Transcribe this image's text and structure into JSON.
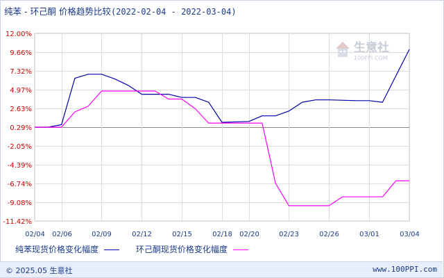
{
  "title": {
    "main": "纯苯 - 环己酮 价格趋势比较",
    "range": "(2022-02-04 - 2022-03-04)"
  },
  "watermark": {
    "name": "生意社",
    "url": "100PPI.COM"
  },
  "legend": [
    {
      "label": "纯苯现货价格变化幅度",
      "color": "#0000aa"
    },
    {
      "label": "环己酮现货价格变化幅度",
      "color": "#ff00ff"
    }
  ],
  "footer": {
    "copyright": "© 2025.05 生意社",
    "site": "www.100PPI.com"
  },
  "chart_data": {
    "type": "line",
    "y_ticks": [
      "12.00%",
      "9.66%",
      "7.32%",
      "4.97%",
      "2.63%",
      "0.29%",
      "-2.05%",
      "-4.39%",
      "-6.74%",
      "-9.08%",
      "-11.42%"
    ],
    "ylim": [
      -11.42,
      12.0
    ],
    "x_ticks": [
      "02/04",
      "02/06",
      "02/09",
      "02/12",
      "02/15",
      "02/18",
      "02/20",
      "02/23",
      "02/26",
      "03/01",
      "03/04"
    ],
    "x_range": [
      "02/04",
      "03/04"
    ],
    "grid": true,
    "series": [
      {
        "name": "纯苯现货价格变化幅度",
        "color": "#0000aa",
        "points": [
          [
            "02/04",
            0.29
          ],
          [
            "02/05",
            0.29
          ],
          [
            "02/06",
            0.6
          ],
          [
            "02/07",
            6.4
          ],
          [
            "02/08",
            6.9
          ],
          [
            "02/09",
            6.9
          ],
          [
            "02/10",
            6.3
          ],
          [
            "02/11",
            5.5
          ],
          [
            "02/12",
            4.4
          ],
          [
            "02/14",
            4.4
          ],
          [
            "02/15",
            4.0
          ],
          [
            "02/16",
            4.0
          ],
          [
            "02/17",
            3.4
          ],
          [
            "02/18",
            0.9
          ],
          [
            "02/20",
            1.0
          ],
          [
            "02/21",
            1.7
          ],
          [
            "02/22",
            1.7
          ],
          [
            "02/23",
            2.3
          ],
          [
            "02/24",
            3.4
          ],
          [
            "02/25",
            3.7
          ],
          [
            "02/26",
            3.7
          ],
          [
            "02/28",
            3.6
          ],
          [
            "03/01",
            3.6
          ],
          [
            "03/02",
            3.4
          ],
          [
            "03/04",
            10.0
          ]
        ]
      },
      {
        "name": "环己酮现货价格变化幅度",
        "color": "#ff00ff",
        "points": [
          [
            "02/04",
            0.29
          ],
          [
            "02/06",
            0.29
          ],
          [
            "02/07",
            2.2
          ],
          [
            "02/08",
            2.9
          ],
          [
            "02/09",
            4.8
          ],
          [
            "02/13",
            4.8
          ],
          [
            "02/14",
            3.8
          ],
          [
            "02/15",
            3.8
          ],
          [
            "02/16",
            2.6
          ],
          [
            "02/17",
            0.8
          ],
          [
            "02/20",
            0.8
          ],
          [
            "02/21",
            0.8
          ],
          [
            "02/22",
            -6.7
          ],
          [
            "02/23",
            -9.5
          ],
          [
            "02/26",
            -9.5
          ],
          [
            "02/27",
            -8.4
          ],
          [
            "02/28",
            -8.4
          ],
          [
            "03/01",
            -8.4
          ],
          [
            "03/02",
            -8.4
          ],
          [
            "03/03",
            -6.4
          ],
          [
            "03/04",
            -6.4
          ]
        ]
      }
    ]
  }
}
